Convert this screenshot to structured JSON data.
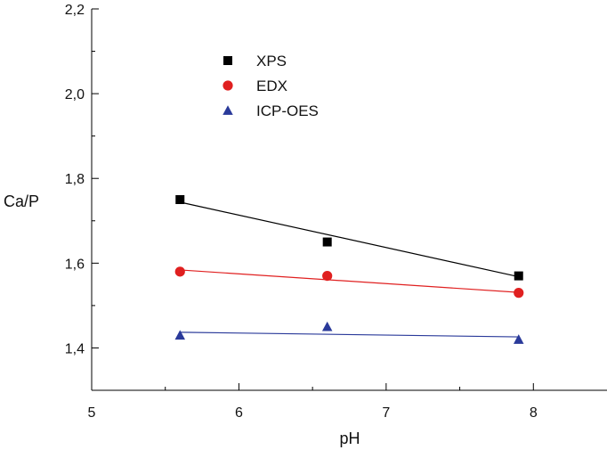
{
  "chart_data": {
    "type": "scatter",
    "title": "",
    "xlabel": "pH",
    "ylabel": "Ca/P",
    "xlim": [
      5,
      8.5
    ],
    "ylim": [
      1.3,
      2.2
    ],
    "x_ticks": [
      5,
      6,
      7,
      8
    ],
    "x_tick_labels": [
      "5",
      "6",
      "7",
      "8"
    ],
    "y_ticks": [
      1.4,
      1.6,
      1.8,
      2.0,
      2.2
    ],
    "y_tick_labels": [
      "1,4",
      "1,6",
      "1,8",
      "2,0",
      "2,2"
    ],
    "grid": false,
    "legend_position": "top-center",
    "series": [
      {
        "name": "XPS",
        "marker": "square",
        "color": "#000000",
        "x": [
          5.6,
          6.6,
          7.9
        ],
        "y": [
          1.75,
          1.65,
          1.57
        ],
        "fit": {
          "x": [
            5.6,
            7.9
          ],
          "y": [
            1.744,
            1.568
          ]
        }
      },
      {
        "name": "EDX",
        "marker": "circle",
        "color": "#e02020",
        "x": [
          5.6,
          6.6,
          7.9
        ],
        "y": [
          1.58,
          1.57,
          1.53
        ],
        "fit": {
          "x": [
            5.6,
            7.9
          ],
          "y": [
            1.584,
            1.531
          ]
        }
      },
      {
        "name": "ICP-OES",
        "marker": "triangle",
        "color": "#2a3a9a",
        "x": [
          5.6,
          6.6,
          7.9
        ],
        "y": [
          1.43,
          1.45,
          1.42
        ],
        "fit": {
          "x": [
            5.6,
            7.9
          ],
          "y": [
            1.437,
            1.426
          ]
        }
      }
    ]
  }
}
